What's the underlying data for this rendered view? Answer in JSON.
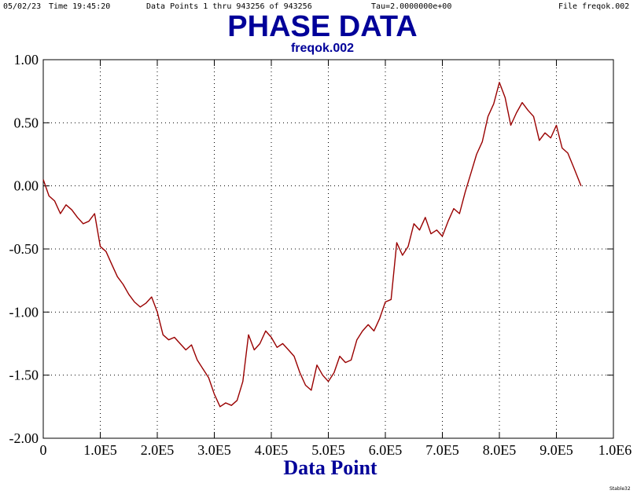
{
  "header": {
    "date": "05/02/23",
    "time": "Time  19:45:20",
    "points": "Data Points 1 thru 943256  of  943256",
    "tau": "Tau=2.0000000e+00",
    "file": "File  freqok.002"
  },
  "credit": "Stable32",
  "colors": {
    "title": "#000099",
    "line": "#990000",
    "axis": "#000000"
  },
  "chart_data": {
    "type": "line",
    "title": "PHASE DATA",
    "subtitle": "freqok.002",
    "xlabel": "Data Point",
    "ylabel": "",
    "xlim": [
      0,
      1000000
    ],
    "ylim": [
      -2.0,
      1.0
    ],
    "grid": true,
    "x_ticks": [
      {
        "value": 0,
        "label": "0"
      },
      {
        "value": 100000,
        "label": "1.0E5"
      },
      {
        "value": 200000,
        "label": "2.0E5"
      },
      {
        "value": 300000,
        "label": "3.0E5"
      },
      {
        "value": 400000,
        "label": "4.0E5"
      },
      {
        "value": 500000,
        "label": "5.0E5"
      },
      {
        "value": 600000,
        "label": "6.0E5"
      },
      {
        "value": 700000,
        "label": "7.0E5"
      },
      {
        "value": 800000,
        "label": "8.0E5"
      },
      {
        "value": 900000,
        "label": "9.0E5"
      },
      {
        "value": 1000000,
        "label": "1.0E6"
      }
    ],
    "y_ticks": [
      {
        "value": 1.0,
        "label": "1.00"
      },
      {
        "value": 0.5,
        "label": "0.50"
      },
      {
        "value": 0.0,
        "label": "0.00"
      },
      {
        "value": -0.5,
        "label": "-0.50"
      },
      {
        "value": -1.0,
        "label": "-1.00"
      },
      {
        "value": -1.5,
        "label": "-1.50"
      },
      {
        "value": -2.0,
        "label": "-2.00"
      }
    ],
    "series": [
      {
        "x": [
          0,
          10000,
          20000,
          30000,
          40000,
          50000,
          60000,
          70000,
          80000,
          90000,
          100000,
          110000,
          120000,
          130000,
          140000,
          150000,
          160000,
          170000,
          180000,
          190000,
          200000,
          210000,
          220000,
          230000,
          240000,
          250000,
          260000,
          270000,
          280000,
          290000,
          300000,
          310000,
          320000,
          330000,
          340000,
          350000,
          360000,
          370000,
          380000,
          390000,
          400000,
          410000,
          420000,
          430000,
          440000,
          450000,
          460000,
          470000,
          480000,
          490000,
          500000,
          510000,
          520000,
          530000,
          540000,
          550000,
          560000,
          570000,
          580000,
          590000,
          600000,
          610000,
          620000,
          630000,
          640000,
          650000,
          660000,
          670000,
          680000,
          690000,
          700000,
          710000,
          720000,
          730000,
          740000,
          750000,
          760000,
          770000,
          780000,
          790000,
          800000,
          810000,
          820000,
          830000,
          840000,
          850000,
          860000,
          870000,
          880000,
          890000,
          900000,
          910000,
          920000,
          930000,
          943256
        ],
        "y": [
          0.05,
          -0.08,
          -0.12,
          -0.22,
          -0.15,
          -0.19,
          -0.25,
          -0.3,
          -0.28,
          -0.22,
          -0.48,
          -0.52,
          -0.62,
          -0.72,
          -0.78,
          -0.86,
          -0.92,
          -0.96,
          -0.93,
          -0.88,
          -1.0,
          -1.18,
          -1.22,
          -1.2,
          -1.25,
          -1.3,
          -1.26,
          -1.38,
          -1.45,
          -1.52,
          -1.65,
          -1.75,
          -1.72,
          -1.74,
          -1.7,
          -1.55,
          -1.18,
          -1.3,
          -1.25,
          -1.15,
          -1.2,
          -1.28,
          -1.25,
          -1.3,
          -1.35,
          -1.48,
          -1.58,
          -1.62,
          -1.42,
          -1.5,
          -1.55,
          -1.48,
          -1.35,
          -1.4,
          -1.38,
          -1.22,
          -1.15,
          -1.1,
          -1.15,
          -1.05,
          -0.92,
          -0.9,
          -0.45,
          -0.55,
          -0.48,
          -0.3,
          -0.35,
          -0.25,
          -0.38,
          -0.35,
          -0.4,
          -0.28,
          -0.18,
          -0.22,
          -0.05,
          0.1,
          0.25,
          0.35,
          0.55,
          0.65,
          0.82,
          0.7,
          0.48,
          0.58,
          0.66,
          0.6,
          0.55,
          0.36,
          0.42,
          0.38,
          0.48,
          0.3,
          0.26,
          0.15,
          0.0
        ]
      }
    ]
  }
}
